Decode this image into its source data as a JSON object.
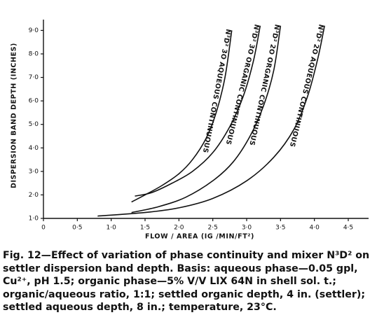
{
  "chart_data": {
    "type": "line",
    "caption": "Fig. 12—Effect of variation of phase continuity and mixer N³D² on settler dispersion band depth. Basis: aqueous phase—0.05 gpl, Cu²⁺, pH 1.5; organic phase—5% V/V LIX 64N in shell sol. t.; organic/aqueous ratio, 1:1; settled organic depth, 4 in. (settler); settled aqueous depth, 8 in.; temperature, 23°C.",
    "x_label": "FLOW / AREA   (IG /MIN/FT²)",
    "y_label": "DISPERSION BAND DEPTH (INCHES)",
    "xlim": [
      0,
      4.8
    ],
    "ylim": [
      1,
      9.4
    ],
    "xticks": [
      0,
      {
        "value": 0.5,
        "label": "0·5"
      },
      {
        "value": 1,
        "label": "1·0"
      },
      {
        "value": 1.5,
        "label": "1·5"
      },
      {
        "value": 2,
        "label": "2·0"
      },
      {
        "value": 2.5,
        "label": "2·5"
      },
      {
        "value": 3,
        "label": "3·0"
      },
      {
        "value": 3.5,
        "label": "3·5"
      },
      {
        "value": 4,
        "label": "4·0"
      },
      {
        "value": 4.5,
        "label": "4·5"
      }
    ],
    "yticks": [
      {
        "value": 1,
        "label": "1·0"
      },
      {
        "value": 2,
        "label": "2·0"
      },
      {
        "value": 3,
        "label": "3·0"
      },
      {
        "value": 4,
        "label": "4·0"
      },
      {
        "value": 5,
        "label": "5·0"
      },
      {
        "value": 6,
        "label": "6·0"
      },
      {
        "value": 7,
        "label": "7·0"
      },
      {
        "value": 8,
        "label": "8·0"
      },
      {
        "value": 9,
        "label": "9·0"
      }
    ],
    "grid": false,
    "series": [
      {
        "name": "N³D² 3O AQUEOUS CONTINUOUS",
        "color": "#111111",
        "x": [
          1.3,
          1.5,
          1.75,
          2.0,
          2.2,
          2.4,
          2.55,
          2.68,
          2.78
        ],
        "values": [
          1.7,
          2.0,
          2.4,
          2.9,
          3.5,
          4.4,
          5.5,
          7.0,
          9.0
        ]
      },
      {
        "name": "N³D² 3O ORGANIC CONTINUOUS",
        "color": "#111111",
        "x": [
          1.35,
          1.6,
          1.9,
          2.2,
          2.5,
          2.75,
          2.95,
          3.1,
          3.2
        ],
        "values": [
          1.95,
          2.1,
          2.5,
          3.0,
          3.8,
          4.9,
          6.2,
          7.7,
          9.2
        ]
      },
      {
        "name": "N³D² 2O ORGANIC CONTINUOUS",
        "color": "#111111",
        "x": [
          1.3,
          1.7,
          2.1,
          2.5,
          2.8,
          3.05,
          3.25,
          3.4,
          3.5
        ],
        "values": [
          1.25,
          1.5,
          1.9,
          2.6,
          3.4,
          4.5,
          5.8,
          7.3,
          9.2
        ]
      },
      {
        "name": "N³D² 2O AQUEOUS CONTINUOUS",
        "color": "#111111",
        "x": [
          0.8,
          1.5,
          2.0,
          2.5,
          3.0,
          3.4,
          3.7,
          3.9,
          4.05,
          4.15
        ],
        "values": [
          1.1,
          1.25,
          1.45,
          1.85,
          2.6,
          3.6,
          4.8,
          6.2,
          7.8,
          9.2
        ]
      }
    ]
  }
}
